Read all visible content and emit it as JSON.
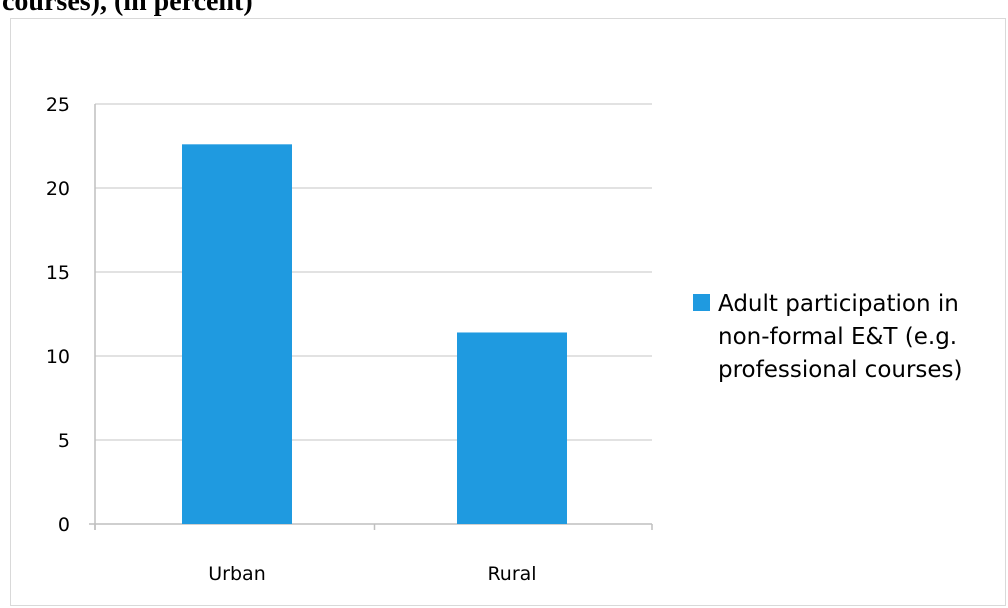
{
  "caption": "courses), (in percent)",
  "chart_data": {
    "type": "bar",
    "categories": [
      "Urban",
      "Rural"
    ],
    "series": [
      {
        "name": "Adult participation in non-formal E&T (e.g. professional courses)",
        "values": [
          22.6,
          11.4
        ],
        "color": "#1f9ae0"
      }
    ],
    "ylim": [
      0,
      25
    ],
    "yticks": [
      0,
      5,
      10,
      15,
      20,
      25
    ],
    "grid": true,
    "legend": {
      "position": "right",
      "lines": [
        "Adult participation in",
        "non-formal E&T (e.g.",
        "professional courses)"
      ]
    }
  }
}
